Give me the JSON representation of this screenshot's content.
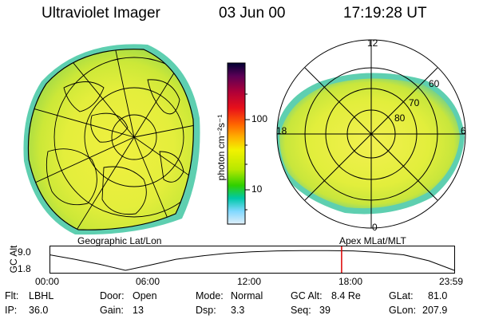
{
  "header": {
    "title": "Ultraviolet Imager",
    "date": "03 Jun 00",
    "time": "17:19:28 UT"
  },
  "colorbar": {
    "unit_label": "photon cm⁻²s⁻¹",
    "ticks": [
      "100",
      "10"
    ],
    "colors": [
      "#000033",
      "#5a0055",
      "#b00038",
      "#e8101a",
      "#ff6400",
      "#ffb000",
      "#f2f200",
      "#b8e800",
      "#2fd000",
      "#00c8a8",
      "#80d8ff",
      "#e0eef8"
    ]
  },
  "geo_map": {
    "caption": "Geographic Lat/Lon",
    "fill_colors": {
      "bright": "#f0f040",
      "mid": "#cce838",
      "low": "#9bd84a",
      "edge": "#5ecfb0"
    }
  },
  "polar_map": {
    "caption": "Apex MLat/MLT",
    "mlt_labels": {
      "top": "12",
      "left": "18",
      "right": "6",
      "bottom": "0"
    },
    "mlat_labels": [
      "60",
      "70",
      "80"
    ]
  },
  "altitude_plot": {
    "ylabel": "GC Alt",
    "y_ticks": [
      "9.0",
      "1.8"
    ],
    "x_ticks": [
      "00:00",
      "06:00",
      "12:00",
      "18:00",
      "23:59"
    ],
    "marker_color": "#dd0000",
    "current_time_hours": 17.32,
    "orbit_hours": [
      0,
      1.5,
      3,
      4.5,
      6,
      7.5,
      9,
      10.5,
      12,
      13.5,
      15,
      16.5,
      18,
      19.5,
      21,
      22.5,
      24
    ],
    "orbit_alt_re": [
      7.0,
      5.5,
      3.8,
      1.8,
      3.6,
      5.5,
      6.6,
      7.5,
      8.0,
      8.3,
      8.4,
      8.4,
      8.3,
      7.8,
      7.0,
      5.0,
      1.8
    ]
  },
  "info": {
    "flt_label": "Flt:",
    "flt_value": "LBHL",
    "ip_label": "IP:",
    "ip_value": "36.0",
    "door_label": "Door:",
    "door_value": "Open",
    "gain_label": "Gain:",
    "gain_value": "13",
    "mode_label": "Mode:",
    "mode_value": "Normal",
    "dsp_label": "Dsp:",
    "dsp_value": "3.3",
    "gcalt_label": "GC Alt:",
    "gcalt_value": "8.4 Re",
    "seq_label": "Seq:",
    "seq_value": "39",
    "glat_label": "GLat:",
    "glat_value": "81.0",
    "glon_label": "GLon:",
    "glon_value": "207.9"
  }
}
